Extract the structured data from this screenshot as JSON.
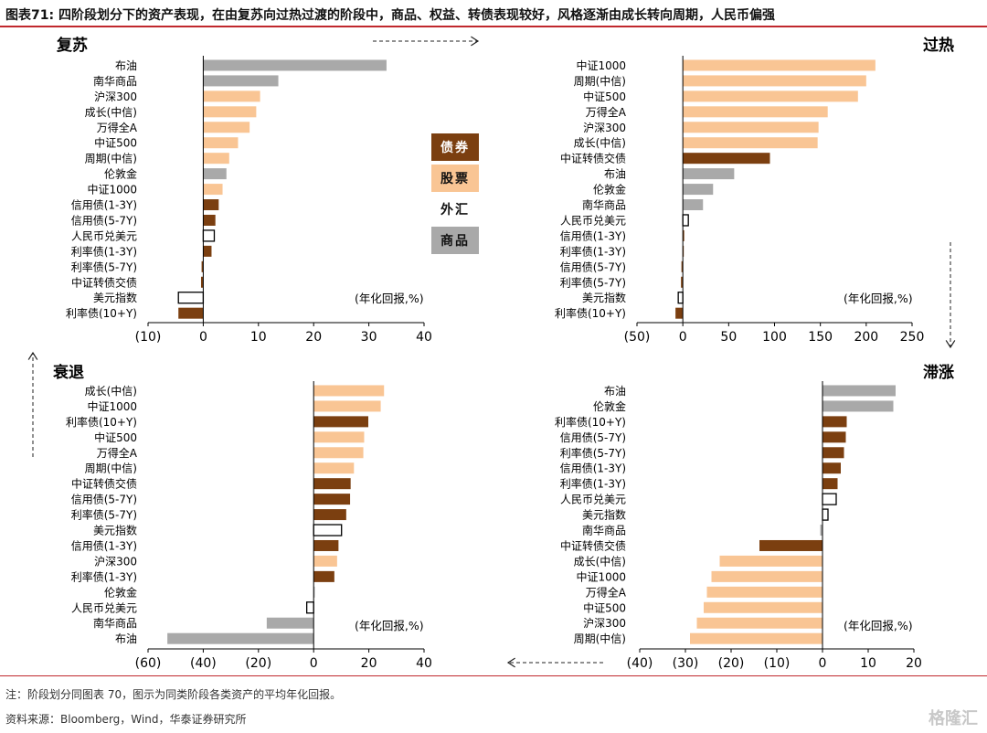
{
  "title": "图表71: 四阶段划分下的资产表现，在由复苏向过热过渡的阶段中，商品、权益、转债表现较好，风格逐渐由成长转向周期，人民币偏强",
  "note": "注：阶段划分同图表 70，图示为同类阶段各类资产的平均年化回报。",
  "source": "资料来源：Bloomberg，Wind，华泰证券研究所",
  "watermark": "格隆汇",
  "colors": {
    "债券": "#7b3f10",
    "股票": "#f9c594",
    "外汇": "#ffffff",
    "商品": "#a9a9a9",
    "accent": "#c0282d"
  },
  "legend": [
    {
      "label": "债券",
      "cls": "债券"
    },
    {
      "label": "股票",
      "cls": "股票"
    },
    {
      "label": "外汇",
      "cls": "外汇"
    },
    {
      "label": "商品",
      "cls": "商品"
    }
  ],
  "chart_data": [
    {
      "type": "bar",
      "orientation": "horizontal",
      "title": "复苏",
      "unit_label": "(年化回报,%)",
      "xlim": [
        -10,
        40
      ],
      "ticks": [
        "(10)",
        "0",
        "10",
        "20",
        "30",
        "40"
      ],
      "bars": [
        {
          "label": "布油",
          "value": 33.2,
          "cls": "商品"
        },
        {
          "label": "南华商品",
          "value": 13.6,
          "cls": "商品"
        },
        {
          "label": "沪深300",
          "value": 10.3,
          "cls": "股票"
        },
        {
          "label": "成长(中信)",
          "value": 9.6,
          "cls": "股票"
        },
        {
          "label": "万得全A",
          "value": 8.4,
          "cls": "股票"
        },
        {
          "label": "中证500",
          "value": 6.3,
          "cls": "股票"
        },
        {
          "label": "周期(中信)",
          "value": 4.7,
          "cls": "股票"
        },
        {
          "label": "伦敦金",
          "value": 4.2,
          "cls": "商品"
        },
        {
          "label": "中证1000",
          "value": 3.5,
          "cls": "股票"
        },
        {
          "label": "信用债(1-3Y)",
          "value": 2.8,
          "cls": "债券"
        },
        {
          "label": "信用债(5-7Y)",
          "value": 2.2,
          "cls": "债券"
        },
        {
          "label": "人民币兑美元",
          "value": 2.0,
          "cls": "外汇"
        },
        {
          "label": "利率债(1-3Y)",
          "value": 1.5,
          "cls": "债券"
        },
        {
          "label": "利率债(5-7Y)",
          "value": -0.3,
          "cls": "债券"
        },
        {
          "label": "中证转债交债",
          "value": -0.4,
          "cls": "债券"
        },
        {
          "label": "美元指数",
          "value": -4.5,
          "cls": "外汇"
        },
        {
          "label": "利率债(10+Y)",
          "value": -4.5,
          "cls": "债券"
        }
      ]
    },
    {
      "type": "bar",
      "orientation": "horizontal",
      "title": "过热",
      "unit_label": "(年化回报,%)",
      "xlim": [
        -50,
        250
      ],
      "ticks": [
        "(50)",
        "0",
        "50",
        "100",
        "150",
        "200",
        "250"
      ],
      "bars": [
        {
          "label": "中证1000",
          "value": 210,
          "cls": "股票"
        },
        {
          "label": "周期(中信)",
          "value": 200,
          "cls": "股票"
        },
        {
          "label": "中证500",
          "value": 191,
          "cls": "股票"
        },
        {
          "label": "万得全A",
          "value": 158,
          "cls": "股票"
        },
        {
          "label": "沪深300",
          "value": 148,
          "cls": "股票"
        },
        {
          "label": "成长(中信)",
          "value": 147,
          "cls": "股票"
        },
        {
          "label": "中证转债交债",
          "value": 95,
          "cls": "债券"
        },
        {
          "label": "布油",
          "value": 56,
          "cls": "商品"
        },
        {
          "label": "伦敦金",
          "value": 33,
          "cls": "商品"
        },
        {
          "label": "南华商品",
          "value": 22,
          "cls": "商品"
        },
        {
          "label": "人民币兑美元",
          "value": 6,
          "cls": "外汇"
        },
        {
          "label": "信用债(1-3Y)",
          "value": 1.5,
          "cls": "债券"
        },
        {
          "label": "利率债(1-3Y)",
          "value": 1.0,
          "cls": "债券"
        },
        {
          "label": "信用债(5-7Y)",
          "value": -1.5,
          "cls": "债券"
        },
        {
          "label": "利率债(5-7Y)",
          "value": -2,
          "cls": "债券"
        },
        {
          "label": "美元指数",
          "value": -5,
          "cls": "外汇"
        },
        {
          "label": "利率债(10+Y)",
          "value": -8,
          "cls": "债券"
        }
      ]
    },
    {
      "type": "bar",
      "orientation": "horizontal",
      "title": "衰退",
      "unit_label": "(年化回报,%)",
      "xlim": [
        -60,
        40
      ],
      "ticks": [
        "(60)",
        "(40)",
        "(20)",
        "0",
        "20",
        "40"
      ],
      "bars": [
        {
          "label": "成长(中信)",
          "value": 25.5,
          "cls": "股票"
        },
        {
          "label": "中证1000",
          "value": 24.3,
          "cls": "股票"
        },
        {
          "label": "利率债(10+Y)",
          "value": 19.8,
          "cls": "债券"
        },
        {
          "label": "中证500",
          "value": 18.3,
          "cls": "股票"
        },
        {
          "label": "万得全A",
          "value": 18.0,
          "cls": "股票"
        },
        {
          "label": "周期(中信)",
          "value": 14.6,
          "cls": "股票"
        },
        {
          "label": "中证转债交债",
          "value": 13.4,
          "cls": "债券"
        },
        {
          "label": "信用债(5-7Y)",
          "value": 13.2,
          "cls": "债券"
        },
        {
          "label": "利率债(5-7Y)",
          "value": 11.8,
          "cls": "债券"
        },
        {
          "label": "美元指数",
          "value": 10.1,
          "cls": "外汇"
        },
        {
          "label": "信用债(1-3Y)",
          "value": 9.0,
          "cls": "债券"
        },
        {
          "label": "沪深300",
          "value": 8.5,
          "cls": "股票"
        },
        {
          "label": "利率债(1-3Y)",
          "value": 7.5,
          "cls": "债券"
        },
        {
          "label": "伦敦金",
          "value": 0.4,
          "cls": "商品"
        },
        {
          "label": "人民币兑美元",
          "value": -2.5,
          "cls": "外汇"
        },
        {
          "label": "南华商品",
          "value": -17.0,
          "cls": "商品"
        },
        {
          "label": "布油",
          "value": -53.0,
          "cls": "商品"
        }
      ]
    },
    {
      "type": "bar",
      "orientation": "horizontal",
      "title": "滞涨",
      "unit_label": "(年化回报,%)",
      "xlim": [
        -40,
        20
      ],
      "ticks": [
        "(40)",
        "(30)",
        "(20)",
        "(10)",
        "0",
        "10",
        "20"
      ],
      "bars": [
        {
          "label": "布油",
          "value": 16.0,
          "cls": "商品"
        },
        {
          "label": "伦敦金",
          "value": 15.5,
          "cls": "商品"
        },
        {
          "label": "利率债(10+Y)",
          "value": 5.3,
          "cls": "债券"
        },
        {
          "label": "信用债(5-7Y)",
          "value": 5.1,
          "cls": "债券"
        },
        {
          "label": "利率债(5-7Y)",
          "value": 4.7,
          "cls": "债券"
        },
        {
          "label": "信用债(1-3Y)",
          "value": 4.0,
          "cls": "债券"
        },
        {
          "label": "利率债(1-3Y)",
          "value": 3.3,
          "cls": "债券"
        },
        {
          "label": "人民币兑美元",
          "value": 3.0,
          "cls": "外汇"
        },
        {
          "label": "美元指数",
          "value": 1.2,
          "cls": "外汇"
        },
        {
          "label": "南华商品",
          "value": -0.5,
          "cls": "商品"
        },
        {
          "label": "中证转债交债",
          "value": -13.8,
          "cls": "债券"
        },
        {
          "label": "成长(中信)",
          "value": -22.5,
          "cls": "股票"
        },
        {
          "label": "中证1000",
          "value": -24.3,
          "cls": "股票"
        },
        {
          "label": "万得全A",
          "value": -25.3,
          "cls": "股票"
        },
        {
          "label": "中证500",
          "value": -26.0,
          "cls": "股票"
        },
        {
          "label": "沪深300",
          "value": -27.5,
          "cls": "股票"
        },
        {
          "label": "周期(中信)",
          "value": -29.0,
          "cls": "股票"
        }
      ]
    }
  ]
}
